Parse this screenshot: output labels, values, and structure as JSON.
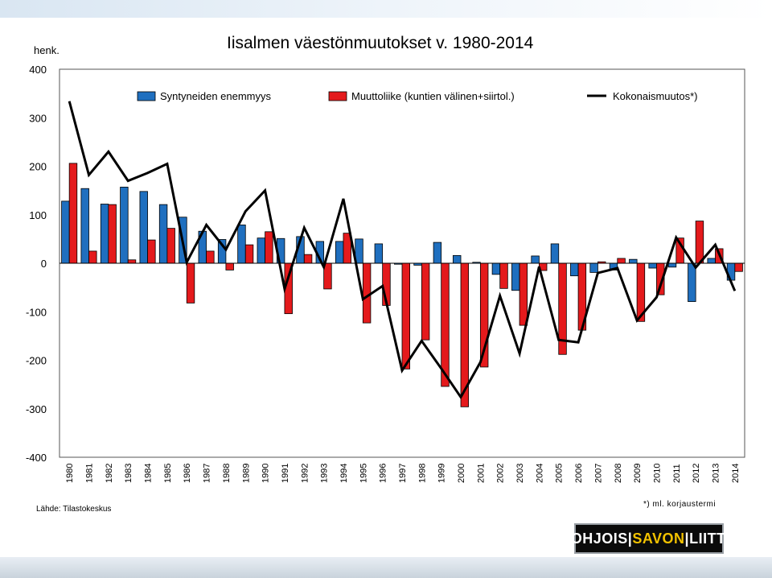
{
  "title": "Iisalmen väestönmuutokset v. 1980-2014",
  "unit_label": "henk.",
  "source": "Lähde: Tilastokeskus",
  "footnote": "*) ml. korjaustermi",
  "logo": {
    "part1": "POHJOIS",
    "part2": "SAVON",
    "part3": "LIITTO"
  },
  "chart_data": {
    "type": "bar",
    "categories": [
      "1980",
      "1981",
      "1982",
      "1983",
      "1984",
      "1985",
      "1986",
      "1987",
      "1988",
      "1989",
      "1990",
      "1991",
      "1992",
      "1993",
      "1994",
      "1995",
      "1996",
      "1997",
      "1998",
      "1999",
      "2000",
      "2001",
      "2002",
      "2003",
      "2004",
      "2005",
      "2006",
      "2007",
      "2008",
      "2009",
      "2010",
      "2011",
      "2012",
      "2013",
      "2014"
    ],
    "series": [
      {
        "name": "Syntyneiden enemmyys",
        "type": "bar",
        "color": "#1f6fbf",
        "values": [
          128,
          154,
          122,
          157,
          148,
          121,
          95,
          66,
          49,
          79,
          52,
          51,
          55,
          45,
          45,
          50,
          40,
          -2,
          -4,
          43,
          16,
          2,
          -23,
          -56,
          15,
          40,
          -26,
          -19,
          -14,
          8,
          -10,
          -8,
          -79,
          10,
          -35
        ]
      },
      {
        "name": "Muuttoliike (kuntien välinen+siirtol.)",
        "type": "bar",
        "color": "#e41a1c",
        "values": [
          206,
          25,
          121,
          7,
          48,
          72,
          -82,
          25,
          -14,
          38,
          65,
          -104,
          18,
          -53,
          62,
          -123,
          -87,
          -218,
          -158,
          -254,
          -296,
          -214,
          -52,
          -128,
          -15,
          -188,
          -138,
          3,
          10,
          -120,
          -65,
          52,
          87,
          30,
          -17
        ]
      },
      {
        "name": "Kokonaismuutos*)",
        "type": "line",
        "color": "#000000",
        "values": [
          334,
          182,
          230,
          170,
          186,
          205,
          2,
          79,
          28,
          107,
          150,
          -53,
          73,
          -8,
          133,
          -74,
          -47,
          -221,
          -160,
          -217,
          -276,
          -204,
          -67,
          -186,
          -7,
          -158,
          -163,
          -20,
          -10,
          -118,
          -70,
          53,
          -9,
          38,
          -57
        ]
      }
    ],
    "ylim": [
      -400,
      400
    ],
    "yticks": [
      "-400",
      "-300",
      "-200",
      "-100",
      "0",
      "100",
      "200",
      "300",
      "400"
    ],
    "ytick_values": [
      -400,
      -300,
      -200,
      -100,
      0,
      100,
      200,
      300,
      400
    ],
    "grid": false,
    "legend": "top"
  }
}
